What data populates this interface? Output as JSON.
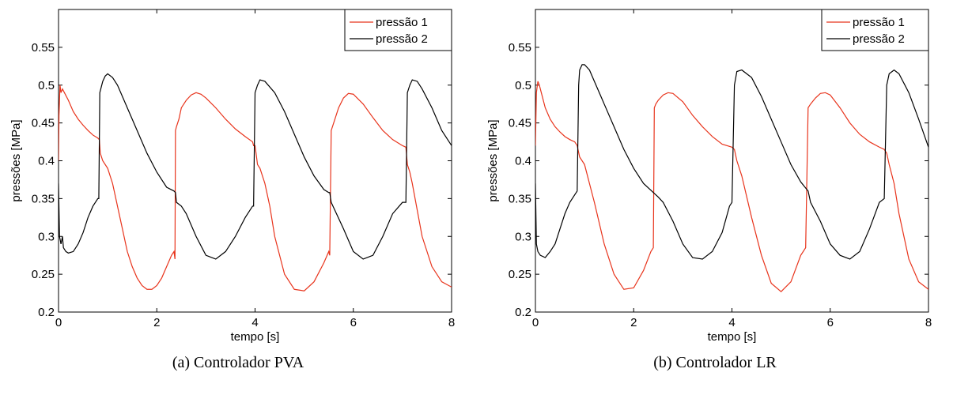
{
  "chart_data": [
    {
      "type": "line",
      "caption": "(a) Controlador PVA",
      "xlabel": "tempo [s]",
      "ylabel": "pressões [MPa]",
      "xlim": [
        0,
        8
      ],
      "ylim": [
        0.2,
        0.6
      ],
      "xticks": [
        "0",
        "2",
        "4",
        "6",
        "8"
      ],
      "yticks": [
        "0.2",
        "0.25",
        "0.3",
        "0.35",
        "0.4",
        "0.45",
        "0.5",
        "0.55"
      ],
      "legend_position": "top-right",
      "series": [
        {
          "name": "pressão 1",
          "color": "#e8341c",
          "x": [
            0,
            0.01,
            0.03,
            0.05,
            0.08,
            0.12,
            0.2,
            0.3,
            0.4,
            0.5,
            0.6,
            0.7,
            0.8,
            0.83,
            0.85,
            0.9,
            1.0,
            1.1,
            1.2,
            1.3,
            1.4,
            1.5,
            1.6,
            1.7,
            1.8,
            1.9,
            2.0,
            2.1,
            2.2,
            2.3,
            2.35,
            2.37,
            2.38,
            2.4,
            2.45,
            2.5,
            2.6,
            2.7,
            2.8,
            2.9,
            3.0,
            3.2,
            3.4,
            3.6,
            3.8,
            3.95,
            3.97,
            4.0,
            4.05,
            4.1,
            4.2,
            4.3,
            4.4,
            4.6,
            4.8,
            5.0,
            5.2,
            5.4,
            5.5,
            5.52,
            5.55,
            5.6,
            5.7,
            5.8,
            5.9,
            6.0,
            6.2,
            6.4,
            6.6,
            6.8,
            7.0,
            7.07,
            7.1,
            7.15,
            7.2,
            7.3,
            7.4,
            7.6,
            7.8,
            8.0
          ],
          "y": [
            0.4,
            0.46,
            0.5,
            0.49,
            0.495,
            0.49,
            0.48,
            0.465,
            0.455,
            0.447,
            0.44,
            0.434,
            0.43,
            0.428,
            0.41,
            0.4,
            0.39,
            0.37,
            0.34,
            0.31,
            0.28,
            0.26,
            0.245,
            0.235,
            0.23,
            0.23,
            0.235,
            0.245,
            0.26,
            0.275,
            0.28,
            0.27,
            0.44,
            0.445,
            0.455,
            0.47,
            0.48,
            0.487,
            0.49,
            0.488,
            0.483,
            0.47,
            0.455,
            0.442,
            0.432,
            0.425,
            0.42,
            0.42,
            0.395,
            0.39,
            0.37,
            0.34,
            0.3,
            0.25,
            0.23,
            0.228,
            0.24,
            0.265,
            0.28,
            0.275,
            0.44,
            0.45,
            0.47,
            0.483,
            0.489,
            0.488,
            0.475,
            0.457,
            0.44,
            0.428,
            0.42,
            0.418,
            0.395,
            0.385,
            0.37,
            0.335,
            0.3,
            0.26,
            0.24,
            0.233
          ]
        },
        {
          "name": "pressão 2",
          "color": "#000000",
          "x": [
            0,
            0.02,
            0.05,
            0.08,
            0.1,
            0.15,
            0.2,
            0.3,
            0.4,
            0.5,
            0.6,
            0.7,
            0.8,
            0.82,
            0.84,
            0.86,
            0.9,
            0.95,
            1.0,
            1.1,
            1.2,
            1.4,
            1.6,
            1.8,
            2.0,
            2.2,
            2.35,
            2.38,
            2.4,
            2.5,
            2.6,
            2.8,
            3.0,
            3.2,
            3.4,
            3.6,
            3.8,
            3.95,
            3.97,
            4.0,
            4.05,
            4.1,
            4.2,
            4.4,
            4.6,
            4.8,
            5.0,
            5.2,
            5.4,
            5.5,
            5.52,
            5.55,
            5.6,
            5.8,
            6.0,
            6.2,
            6.4,
            6.6,
            6.8,
            7.0,
            7.07,
            7.1,
            7.15,
            7.2,
            7.3,
            7.4,
            7.6,
            7.8,
            8.0
          ],
          "y": [
            0.37,
            0.3,
            0.29,
            0.3,
            0.285,
            0.28,
            0.278,
            0.28,
            0.29,
            0.305,
            0.325,
            0.34,
            0.35,
            0.35,
            0.49,
            0.495,
            0.505,
            0.512,
            0.515,
            0.51,
            0.5,
            0.47,
            0.44,
            0.41,
            0.385,
            0.365,
            0.36,
            0.358,
            0.345,
            0.34,
            0.33,
            0.3,
            0.275,
            0.27,
            0.28,
            0.3,
            0.325,
            0.34,
            0.34,
            0.49,
            0.5,
            0.507,
            0.505,
            0.49,
            0.465,
            0.435,
            0.405,
            0.38,
            0.362,
            0.358,
            0.358,
            0.345,
            0.338,
            0.31,
            0.28,
            0.27,
            0.275,
            0.3,
            0.33,
            0.345,
            0.345,
            0.49,
            0.5,
            0.507,
            0.505,
            0.495,
            0.47,
            0.44,
            0.42
          ]
        }
      ]
    },
    {
      "type": "line",
      "caption": "(b) Controlador LR",
      "xlabel": "tempo [s]",
      "ylabel": "pressões [MPa]",
      "xlim": [
        0,
        8
      ],
      "ylim": [
        0.2,
        0.6
      ],
      "xticks": [
        "0",
        "2",
        "4",
        "6",
        "8"
      ],
      "yticks": [
        "0.2",
        "0.25",
        "0.3",
        "0.35",
        "0.4",
        "0.45",
        "0.5",
        "0.55"
      ],
      "legend_position": "top-right",
      "series": [
        {
          "name": "pressão 1",
          "color": "#e8341c",
          "x": [
            0,
            0.02,
            0.05,
            0.08,
            0.12,
            0.2,
            0.3,
            0.4,
            0.5,
            0.6,
            0.7,
            0.8,
            0.85,
            0.9,
            1.0,
            1.1,
            1.2,
            1.4,
            1.6,
            1.8,
            2.0,
            2.2,
            2.35,
            2.4,
            2.42,
            2.45,
            2.5,
            2.6,
            2.7,
            2.8,
            3.0,
            3.2,
            3.4,
            3.6,
            3.8,
            4.0,
            4.05,
            4.1,
            4.2,
            4.4,
            4.6,
            4.8,
            5.0,
            5.2,
            5.4,
            5.5,
            5.55,
            5.6,
            5.7,
            5.8,
            5.9,
            6.0,
            6.2,
            6.4,
            6.6,
            6.8,
            7.0,
            7.1,
            7.15,
            7.2,
            7.3,
            7.4,
            7.6,
            7.8,
            8.0
          ],
          "y": [
            0.42,
            0.49,
            0.505,
            0.5,
            0.49,
            0.47,
            0.455,
            0.445,
            0.438,
            0.432,
            0.428,
            0.425,
            0.42,
            0.405,
            0.395,
            0.37,
            0.345,
            0.29,
            0.25,
            0.23,
            0.232,
            0.255,
            0.28,
            0.285,
            0.47,
            0.475,
            0.48,
            0.487,
            0.49,
            0.489,
            0.478,
            0.46,
            0.445,
            0.432,
            0.422,
            0.418,
            0.415,
            0.4,
            0.38,
            0.325,
            0.275,
            0.238,
            0.227,
            0.24,
            0.275,
            0.285,
            0.47,
            0.475,
            0.483,
            0.489,
            0.49,
            0.487,
            0.47,
            0.45,
            0.435,
            0.425,
            0.418,
            0.415,
            0.41,
            0.395,
            0.37,
            0.33,
            0.27,
            0.24,
            0.23
          ]
        },
        {
          "name": "pressão 2",
          "color": "#000000",
          "x": [
            0,
            0.02,
            0.05,
            0.1,
            0.2,
            0.3,
            0.4,
            0.5,
            0.6,
            0.7,
            0.8,
            0.85,
            0.88,
            0.9,
            0.95,
            1.0,
            1.1,
            1.2,
            1.4,
            1.6,
            1.8,
            2.0,
            2.2,
            2.4,
            2.5,
            2.6,
            2.8,
            3.0,
            3.2,
            3.4,
            3.6,
            3.8,
            3.95,
            4.0,
            4.05,
            4.1,
            4.2,
            4.4,
            4.6,
            4.8,
            5.0,
            5.2,
            5.4,
            5.55,
            5.6,
            5.8,
            6.0,
            6.2,
            6.4,
            6.6,
            6.8,
            7.0,
            7.1,
            7.15,
            7.2,
            7.3,
            7.4,
            7.6,
            7.8,
            8.0
          ],
          "y": [
            0.37,
            0.29,
            0.28,
            0.275,
            0.272,
            0.28,
            0.29,
            0.31,
            0.33,
            0.345,
            0.355,
            0.36,
            0.5,
            0.52,
            0.527,
            0.527,
            0.52,
            0.505,
            0.475,
            0.445,
            0.415,
            0.39,
            0.37,
            0.358,
            0.352,
            0.345,
            0.32,
            0.29,
            0.272,
            0.27,
            0.28,
            0.305,
            0.34,
            0.345,
            0.5,
            0.518,
            0.52,
            0.51,
            0.485,
            0.455,
            0.425,
            0.395,
            0.372,
            0.36,
            0.345,
            0.32,
            0.29,
            0.275,
            0.27,
            0.28,
            0.31,
            0.345,
            0.35,
            0.5,
            0.515,
            0.52,
            0.515,
            0.49,
            0.455,
            0.418
          ]
        }
      ]
    }
  ]
}
